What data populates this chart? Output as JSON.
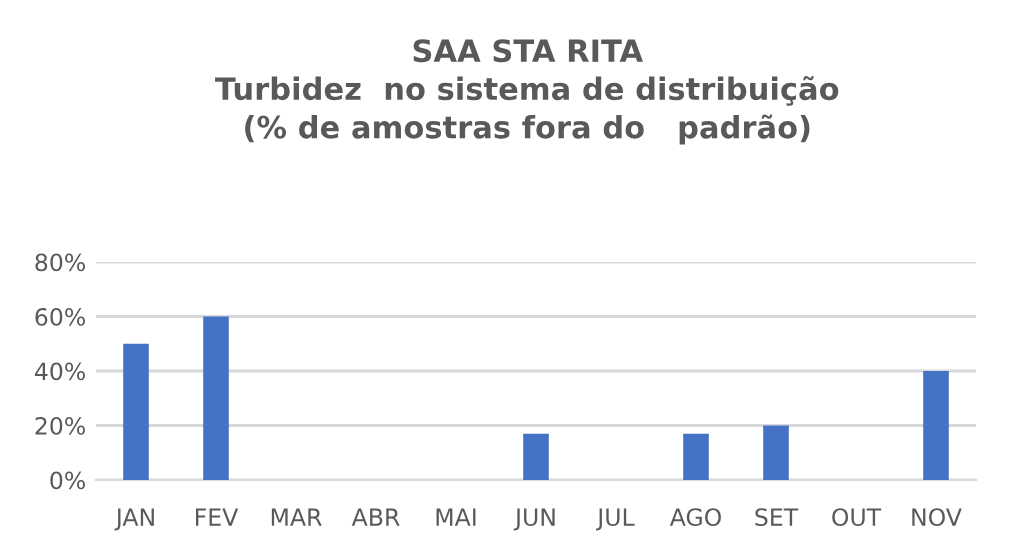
{
  "chart_data": {
    "type": "bar",
    "title": "SAA STA RITA\nTurbidez  no sistema de distribuição\n(% de amostras fora do   padrão)",
    "categories": [
      "JAN",
      "FEV",
      "MAR",
      "ABR",
      "MAI",
      "JUN",
      "JUL",
      "AGO",
      "SET",
      "OUT",
      "NOV"
    ],
    "values": [
      50,
      60,
      0,
      0,
      0,
      17,
      0,
      17,
      20,
      0,
      40
    ],
    "color": "#4472c4",
    "ylim": [
      0,
      80
    ],
    "yticks": [
      {
        "value": 0,
        "label": "0%"
      },
      {
        "value": 20,
        "label": "20%"
      },
      {
        "value": 40,
        "label": "40%"
      },
      {
        "value": 60,
        "label": "60%"
      },
      {
        "value": 80,
        "label": "80%"
      }
    ],
    "grid": "y",
    "legend": false
  }
}
